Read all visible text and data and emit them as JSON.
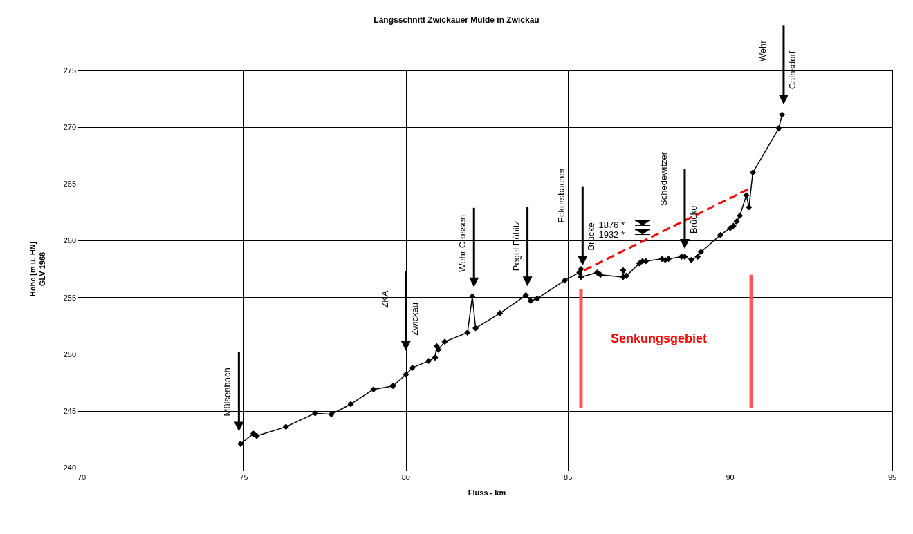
{
  "chart_data": {
    "type": "line",
    "title": "Längsschnitt Zwickauer Mulde in Zwickau",
    "xlabel": "Fluss - km",
    "ylabel": "Höhe [m ü. HN]\nGLV 1966",
    "xlim": [
      70,
      95
    ],
    "xticks": [
      70,
      75,
      80,
      85,
      90,
      95
    ],
    "ylim": [
      240,
      275
    ],
    "yticks": [
      240,
      245,
      250,
      255,
      260,
      265,
      270,
      275
    ],
    "grid": true,
    "marker": "diamond",
    "line_style": "solid",
    "series": [
      {
        "color": "#000000",
        "x": [
          74.9,
          75.3,
          75.4,
          76.3,
          77.2,
          77.7,
          78.3,
          79.0,
          79.6,
          80.0,
          80.2,
          80.7,
          80.9,
          80.95,
          81.0,
          81.2,
          81.9,
          82.05,
          82.15,
          82.9,
          83.7,
          83.85,
          84.05,
          84.9,
          85.35,
          85.4,
          85.4,
          85.9,
          86.0,
          86.7,
          86.7,
          86.8,
          87.2,
          87.3,
          87.4,
          87.9,
          88.0,
          88.1,
          88.5,
          88.6,
          88.8,
          89.0,
          89.1,
          89.7,
          90.0,
          90.1,
          90.2,
          90.3,
          90.5,
          90.58,
          90.7,
          91.5,
          91.6
        ],
        "values": [
          242.1,
          243.0,
          242.8,
          243.6,
          244.8,
          244.7,
          245.6,
          246.9,
          247.2,
          248.2,
          248.8,
          249.4,
          249.7,
          250.7,
          250.4,
          251.1,
          251.9,
          255.1,
          252.3,
          253.6,
          255.2,
          254.7,
          254.9,
          256.5,
          257.2,
          257.5,
          256.8,
          257.2,
          257.0,
          256.8,
          257.4,
          256.9,
          258.0,
          258.2,
          258.2,
          258.4,
          258.3,
          258.4,
          258.6,
          258.6,
          258.3,
          258.6,
          259.0,
          260.5,
          261.1,
          261.3,
          261.7,
          262.2,
          264.0,
          262.95,
          266.0,
          269.9,
          271.1
        ]
      },
      {
        "color": "#ff0000",
        "marker": "none",
        "line_style": "dashed",
        "x": [
          85.5,
          90.6
        ],
        "values": [
          257.4,
          264.6
        ]
      },
      {
        "color": "#ff5555",
        "marker": "none",
        "x": [
          85.4,
          85.4
        ],
        "values": [
          245.3,
          255.7
        ]
      },
      {
        "color": "#ff5555",
        "marker": "none",
        "x": [
          90.65,
          90.65
        ],
        "values": [
          245.3,
          257.0
        ]
      }
    ],
    "annotations": [
      "Mülsenbach",
      "ZKA\nZwickau",
      "Wehr Crossen",
      "Pegel Pöbitz",
      "Eckersbacher\nBrücke",
      "Schedewitzer\nBrücke",
      "Wehr\nCainsdorf",
      "1876 *",
      "1932 *",
      "Senkungsgebiet"
    ]
  }
}
